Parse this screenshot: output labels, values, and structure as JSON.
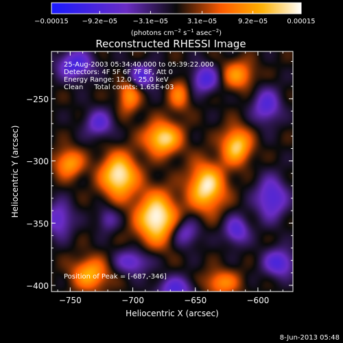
{
  "chart_data": {
    "type": "heatmap",
    "title": "Reconstructed RHESSI Image",
    "xlabel": "Heliocentric X (arcsec)",
    "ylabel": "Heliocentric Y (arcsec)",
    "xlim": [
      -765,
      -572
    ],
    "ylim": [
      -405,
      -212
    ],
    "x_ticks": [
      -750,
      -700,
      -650,
      -600
    ],
    "x_tick_labels": [
      "−750",
      "−700",
      "−650",
      "−600"
    ],
    "y_ticks": [
      -250,
      -300,
      -350,
      -400
    ],
    "y_tick_labels": [
      "−250",
      "−300",
      "−350",
      "−400"
    ],
    "colorbar": {
      "range": [
        -0.00015,
        0.00015
      ],
      "ticks": [
        -0.00015,
        -9.2e-05,
        -3.1e-05,
        3.1e-05,
        9.2e-05,
        0.00015
      ],
      "tick_labels": [
        "−0.00015",
        "−9.2e−05",
        "−3.1e−05",
        "3.1e−05",
        "9.2e−05",
        "0.00015"
      ],
      "label_main": "(photons cm",
      "label_sup1": "−2",
      "label_mid": " s",
      "label_sup2": "−1",
      "label_mid2": " asec",
      "label_sup3": "−2",
      "label_end": ")",
      "colors": [
        "#1a1aff",
        "#6a2cc4",
        "#0a0a0a",
        "#ff5a00",
        "#ffb000",
        "#ffffff"
      ]
    },
    "annotations": [
      "25-Aug-2003 05:34:40.000 to 05:39:22.000",
      "Detectors: 4F 5F 6F 7F 8F, Att 0",
      "Energy Range: 12.0 - 25.0 keV",
      "Clean     Total counts: 1.65E+03"
    ],
    "peak_label": "Position of Peak = [-687,-346]",
    "peak": [
      -687,
      -346
    ],
    "sources": [
      {
        "x": -681,
        "y": -346,
        "amp": 1.0,
        "sx": 11,
        "sy": 14
      },
      {
        "x": -711,
        "y": -312,
        "amp": 0.95,
        "sx": 10,
        "sy": 12
      },
      {
        "x": -676,
        "y": -282,
        "amp": 0.85,
        "sx": 10,
        "sy": 9
      },
      {
        "x": -641,
        "y": -321,
        "amp": 0.9,
        "sx": 10,
        "sy": 13
      },
      {
        "x": -617,
        "y": -288,
        "amp": 0.8,
        "sx": 8,
        "sy": 10
      },
      {
        "x": -751,
        "y": -302,
        "amp": 0.6,
        "sx": 8,
        "sy": 8
      },
      {
        "x": -616,
        "y": -231,
        "amp": 0.55,
        "sx": 9,
        "sy": 8
      },
      {
        "x": -734,
        "y": -391,
        "amp": 0.65,
        "sx": 10,
        "sy": 9
      },
      {
        "x": -629,
        "y": -398,
        "amp": 0.5,
        "sx": 10,
        "sy": 7
      },
      {
        "x": -663,
        "y": -247,
        "amp": 0.45,
        "sx": 6,
        "sy": 9
      },
      {
        "x": -703,
        "y": -247,
        "amp": 0.55,
        "sx": 6,
        "sy": 10
      },
      {
        "x": -746,
        "y": -223,
        "amp": -0.65,
        "sx": 10,
        "sy": 8
      },
      {
        "x": -727,
        "y": -270,
        "amp": -0.5,
        "sx": 8,
        "sy": 8
      },
      {
        "x": -693,
        "y": -232,
        "amp": -0.55,
        "sx": 9,
        "sy": 7
      },
      {
        "x": -642,
        "y": -234,
        "amp": -0.6,
        "sx": 8,
        "sy": 8
      },
      {
        "x": -593,
        "y": -256,
        "amp": -0.55,
        "sx": 8,
        "sy": 10
      },
      {
        "x": -589,
        "y": -330,
        "amp": -0.6,
        "sx": 9,
        "sy": 12
      },
      {
        "x": -658,
        "y": -358,
        "amp": -0.45,
        "sx": 8,
        "sy": 8
      },
      {
        "x": -617,
        "y": -356,
        "amp": -0.55,
        "sx": 7,
        "sy": 8
      },
      {
        "x": -700,
        "y": -381,
        "amp": -0.5,
        "sx": 10,
        "sy": 7
      },
      {
        "x": -666,
        "y": -403,
        "amp": -0.55,
        "sx": 10,
        "sy": 7
      },
      {
        "x": -759,
        "y": -347,
        "amp": -0.5,
        "sx": 8,
        "sy": 10
      },
      {
        "x": -583,
        "y": -382,
        "amp": -0.6,
        "sx": 9,
        "sy": 8
      },
      {
        "x": -720,
        "y": -347,
        "amp": -0.35,
        "sx": 6,
        "sy": 7
      }
    ],
    "grid": false
  },
  "footer": {
    "date": "8-Jun-2013 05:48"
  }
}
